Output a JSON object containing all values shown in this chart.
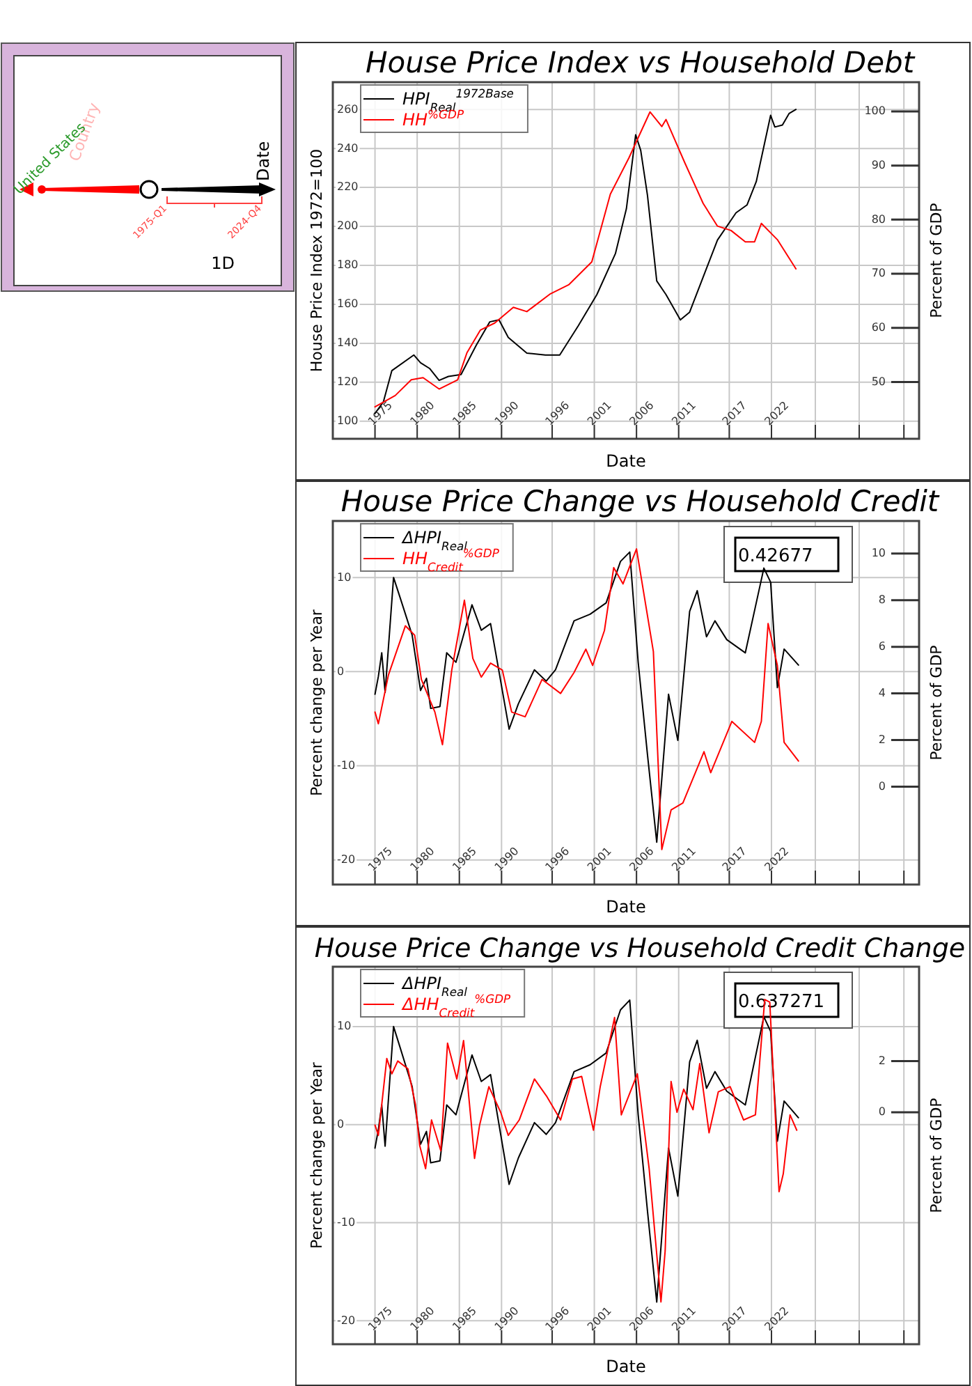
{
  "chart_data": [
    {
      "type": "other",
      "annotations": [
        "Country",
        "United States",
        "Date",
        "1975-Q1",
        "2024-Q4",
        "1D"
      ]
    },
    {
      "type": "line",
      "title": "House Price Index vs Household Debt",
      "xlabel": "Date",
      "ylabel": "House Price Index 1972=100",
      "y2label": "Percent of GDP",
      "grid": true,
      "legend": "top left",
      "xlim": [
        1970,
        2039.5
      ],
      "xticks": [
        1975,
        1980,
        1985,
        1990,
        1996,
        2001,
        2006,
        2011,
        2017,
        2022,
        {
          "value": 2027.2,
          "label": null
        },
        {
          "value": 2032.4,
          "label": null
        },
        {
          "value": 2037.7,
          "label": null
        }
      ],
      "ylim": [
        91,
        274
      ],
      "yticks": [
        100,
        120,
        140,
        160,
        180,
        200,
        220,
        240,
        260
      ],
      "y2lim": [
        39.5,
        105.4
      ],
      "y2ticks": [
        50,
        60,
        70,
        80,
        90,
        100
      ],
      "series": [
        {
          "name": "HPI$_{Real}$$^{1972Base}$",
          "color": "#000000",
          "x": [
            1975,
            1976,
            1977,
            1979.6,
            1980.4,
            1981.5,
            1982.6,
            1983.7,
            1985.2,
            1987,
            1988.6,
            1989.7,
            1990.8,
            1993,
            1995.2,
            1996.9,
            1999.1,
            2001.3,
            2003.5,
            2004.8,
            2005.9,
            2006.5,
            2007.3,
            2008.4,
            2009.5,
            2011.2,
            2012.3,
            2013.9,
            2015.6,
            2017.8,
            2019.1,
            2020.2,
            2021.9,
            2022.4,
            2023.3,
            2024.1,
            2024.9
          ],
          "values": [
            104,
            110,
            126,
            134,
            130,
            127,
            121,
            123,
            124,
            139,
            151,
            152,
            143,
            135,
            134,
            134,
            149,
            165,
            186,
            209,
            247,
            239,
            216,
            172,
            165,
            152,
            156,
            174,
            193,
            207,
            211,
            223,
            257,
            251,
            252,
            258,
            260
          ]
        },
        {
          "name": "HH$^{%GDP}$",
          "color": "#ff0000",
          "axis": "y2",
          "x": [
            1975,
            1977.4,
            1979.3,
            1980.7,
            1982.6,
            1984.8,
            1985.9,
            1987.5,
            1989.2,
            1991.4,
            1993,
            1995.8,
            1998,
            2000.7,
            2002.9,
            2005.1,
            2007.6,
            2009,
            2009.5,
            2011.7,
            2013.9,
            2015.6,
            2017.2,
            2018.9,
            2020,
            2020.8,
            2022.7,
            2024.9
          ],
          "values": [
            45.4,
            47.5,
            50.4,
            50.8,
            48.7,
            50.4,
            55.4,
            59.6,
            60.9,
            63.8,
            63,
            66.3,
            68,
            72.2,
            84.7,
            91.4,
            99.9,
            97.2,
            98.5,
            90.6,
            83,
            78.8,
            78,
            75.9,
            75.9,
            79.3,
            76.3,
            70.9
          ]
        }
      ]
    },
    {
      "type": "line",
      "title": "House Price Change vs Household Credit",
      "xlabel": "Date",
      "ylabel": "Percent change per Year",
      "y2label": "Percent of GDP",
      "grid": true,
      "legend": "top left",
      "annotations": [
        "0.42677"
      ],
      "xlim": [
        1970,
        2039.5
      ],
      "xticks": [
        1975,
        1980,
        1985,
        1990,
        1996,
        2001,
        2006,
        2011,
        2017,
        2022,
        {
          "value": 2027.2,
          "label": null
        },
        {
          "value": 2032.4,
          "label": null
        },
        {
          "value": 2037.7,
          "label": null
        }
      ],
      "ylim": [
        -22.6,
        16
      ],
      "yticks": [
        -20,
        -10,
        0,
        10
      ],
      "y2lim": [
        -4.2,
        11.4
      ],
      "y2ticks": [
        0,
        2,
        4,
        6,
        8,
        10
      ],
      "series": [
        {
          "name": "ΔHPI$_{Real}$",
          "color": "#000000",
          "x": [
            1975,
            1975.4,
            1975.8,
            1976.2,
            1977.2,
            1978,
            1979.4,
            1980.4,
            1981.1,
            1981.6,
            1982.7,
            1983.5,
            1984.6,
            1986.5,
            1987.6,
            1988.7,
            1990.9,
            1992,
            1993.9,
            1995.3,
            1996.4,
            1998.6,
            2000.5,
            2002.4,
            2004.1,
            2005.2,
            2006.2,
            2007.3,
            2008.4,
            2009.8,
            2010.9,
            2012.3,
            2013.2,
            2014.3,
            2015.3,
            2016.7,
            2018.9,
            2021.1,
            2021.9,
            2022.7,
            2023.5,
            2025.2
          ],
          "values": [
            -2.4,
            -0.5,
            2,
            -2.2,
            10,
            7.8,
            3.9,
            -2,
            -0.7,
            -3.9,
            -3.7,
            2,
            1,
            7.1,
            4.4,
            5.1,
            -6.1,
            -3.4,
            0.2,
            -1,
            0.2,
            5.4,
            6.1,
            7.3,
            11.7,
            12.7,
            1,
            -8.8,
            -18.1,
            -2.4,
            -7.3,
            6.4,
            8.6,
            3.7,
            5.4,
            3.4,
            2,
            11,
            9.5,
            -1.7,
            2.4,
            0.7
          ]
        },
        {
          "name": "HH$_{Credit}$$^{%GDP}$",
          "color": "#ff0000",
          "axis": "y2",
          "x": [
            1975,
            1975.4,
            1976.6,
            1978.6,
            1979.7,
            1980.5,
            1982.1,
            1983,
            1984.1,
            1985.6,
            1986.6,
            1987.6,
            1988.7,
            1990.1,
            1991.2,
            1992.8,
            1994.8,
            1997,
            1998.6,
            2000,
            2000.8,
            2002.2,
            2003.3,
            2004.4,
            2006,
            2008,
            2009,
            2010.1,
            2011.5,
            2014,
            2014.8,
            2017.3,
            2020,
            2020.8,
            2021.6,
            2022.7,
            2023.5,
            2025.2
          ],
          "values": [
            3.2,
            2.7,
            4.8,
            6.9,
            6.5,
            4.6,
            3.2,
            1.8,
            5,
            8,
            5.5,
            4.7,
            5.3,
            5,
            3.2,
            3,
            4.6,
            4,
            4.9,
            5.9,
            5.2,
            6.7,
            9.4,
            8.7,
            10.2,
            5.8,
            -2.7,
            -1,
            -0.7,
            1.5,
            0.6,
            2.8,
            1.9,
            2.8,
            7,
            5.2,
            1.9,
            1.1
          ]
        }
      ]
    },
    {
      "type": "line",
      "title": "House Price Change vs Household Credit Change",
      "xlabel": "Date",
      "ylabel": "Percent change per Year",
      "y2label": "Percent of GDP",
      "grid": true,
      "legend": "top left",
      "annotations": [
        "0.637271"
      ],
      "xlim": [
        1970,
        2039.5
      ],
      "xticks": [
        1975,
        1980,
        1985,
        1990,
        1996,
        2001,
        2006,
        2011,
        2017,
        2022,
        {
          "value": 2027.2,
          "label": null
        },
        {
          "value": 2032.4,
          "label": null
        },
        {
          "value": 2037.7,
          "label": null
        }
      ],
      "ylim": [
        -22.4,
        16.1
      ],
      "yticks": [
        -20,
        -10,
        0,
        10
      ],
      "y2lim": [
        -9.05,
        5.68
      ],
      "y2ticks": [
        0,
        2
      ],
      "series": [
        {
          "name": "ΔHPI$_{Real}$",
          "color": "#000000",
          "x": [
            1975,
            1975.4,
            1975.8,
            1976.2,
            1977.2,
            1978,
            1979.4,
            1980.4,
            1981.1,
            1981.6,
            1982.7,
            1983.5,
            1984.6,
            1986.5,
            1987.6,
            1988.7,
            1990.9,
            1992,
            1993.9,
            1995.3,
            1996.4,
            1998.6,
            2000.5,
            2002.4,
            2004.1,
            2005.2,
            2006.2,
            2007.3,
            2008.4,
            2009.8,
            2010.9,
            2012.3,
            2013.2,
            2014.3,
            2015.3,
            2016.7,
            2018.9,
            2021.1,
            2021.9,
            2022.7,
            2023.5,
            2025.2
          ],
          "values": [
            -2.4,
            -0.5,
            2,
            -2.2,
            10,
            7.8,
            3.9,
            -2,
            -0.7,
            -3.9,
            -3.7,
            2,
            1,
            7.1,
            4.4,
            5.1,
            -6.1,
            -3.4,
            0.2,
            -1,
            0.2,
            5.4,
            6.1,
            7.3,
            11.7,
            12.7,
            1,
            -8.8,
            -18.1,
            -2.4,
            -7.3,
            6.4,
            8.6,
            3.7,
            5.4,
            3.4,
            2,
            11,
            9.5,
            -1.7,
            2.4,
            0.7
          ]
        },
        {
          "name": "ΔHH$_{Credit}$$^{%GDP}$",
          "color": "#ff0000",
          "axis": "y2",
          "x": [
            1975,
            1975.4,
            1975.8,
            1976.4,
            1977,
            1977.7,
            1978.9,
            1979.8,
            1980.3,
            1981,
            1981.7,
            1982.8,
            1983.6,
            1984.7,
            1985.5,
            1986.8,
            1987.4,
            1988.5,
            1989.9,
            1990.8,
            1992.1,
            1993.9,
            1995.4,
            1997,
            1998.4,
            1999.5,
            2000.9,
            2001.7,
            2003.4,
            2004.2,
            2006.1,
            2007.5,
            2008.9,
            2009.4,
            2010.1,
            2010.8,
            2011.6,
            2012.7,
            2013.5,
            2014.6,
            2015.7,
            2017.1,
            2018.7,
            2020.1,
            2021.2,
            2021.8,
            2022.6,
            2022.9,
            2023.4,
            2024.2,
            2025
          ],
          "values": [
            -0.5,
            -0.9,
            0.3,
            2.1,
            1.5,
            2,
            1.7,
            0.3,
            -1.3,
            -2.2,
            -0.3,
            -1.5,
            2.7,
            1.3,
            2.8,
            -1.8,
            -0.5,
            1,
            0,
            -0.9,
            -0.3,
            1.3,
            0.6,
            -0.3,
            1.3,
            1.4,
            -0.7,
            1,
            3.7,
            -0.1,
            1.5,
            -2.2,
            -7.4,
            -5.4,
            1.2,
            0,
            0.9,
            0.1,
            1.9,
            -0.8,
            0.8,
            1,
            -0.3,
            -0.1,
            4.4,
            4.3,
            -1.1,
            -3.1,
            -2.4,
            -0.1,
            -0.7
          ]
        }
      ]
    }
  ]
}
